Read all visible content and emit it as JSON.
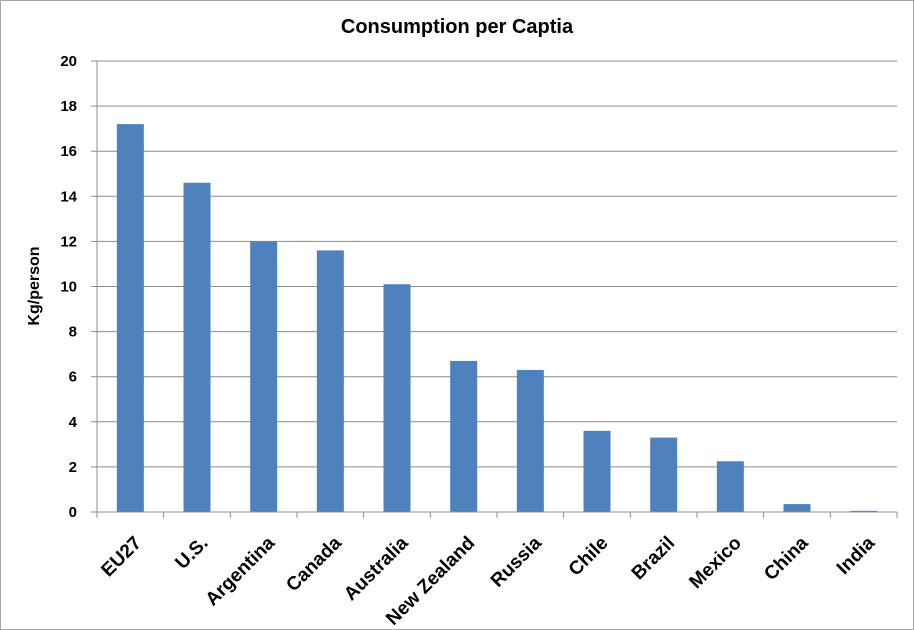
{
  "chart_data": {
    "type": "bar",
    "title": "Consumption per Captia",
    "ylabel": "Kg/person",
    "xlabel": "",
    "categories": [
      "EU27",
      "U.S.",
      "Argentina",
      "Canada",
      "Australia",
      "New Zealand",
      "Russia",
      "Chile",
      "Brazil",
      "Mexico",
      "China",
      "India"
    ],
    "values": [
      17.2,
      14.6,
      12.0,
      11.6,
      10.1,
      6.7,
      6.3,
      3.6,
      3.3,
      2.25,
      0.35,
      0.05
    ],
    "ylim": [
      0,
      20
    ],
    "yticks": [
      "0",
      "2",
      "4",
      "6",
      "8",
      "10",
      "12",
      "14",
      "16",
      "18",
      "20"
    ],
    "grid": true,
    "bar_color": "#4f81bd"
  }
}
